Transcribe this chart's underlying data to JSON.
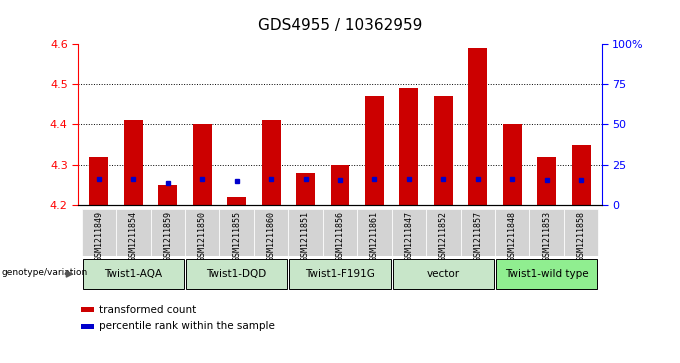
{
  "title": "GDS4955 / 10362959",
  "samples": [
    "GSM1211849",
    "GSM1211854",
    "GSM1211859",
    "GSM1211850",
    "GSM1211855",
    "GSM1211860",
    "GSM1211851",
    "GSM1211856",
    "GSM1211861",
    "GSM1211847",
    "GSM1211852",
    "GSM1211857",
    "GSM1211848",
    "GSM1211853",
    "GSM1211858"
  ],
  "red_values": [
    4.32,
    4.41,
    4.25,
    4.4,
    4.22,
    4.41,
    4.28,
    4.3,
    4.47,
    4.49,
    4.47,
    4.59,
    4.4,
    4.32,
    4.35
  ],
  "blue_values": [
    4.265,
    4.265,
    4.255,
    4.265,
    4.26,
    4.265,
    4.265,
    4.263,
    4.265,
    4.265,
    4.265,
    4.265,
    4.265,
    4.263,
    4.263
  ],
  "y_min": 4.2,
  "y_max": 4.6,
  "y_ticks_left": [
    4.2,
    4.3,
    4.4,
    4.5,
    4.6
  ],
  "y_ticks_right_pct": [
    0,
    25,
    50,
    75,
    100
  ],
  "groups": [
    {
      "label": "Twist1-AQA",
      "start": 0,
      "end": 3
    },
    {
      "label": "Twist1-DQD",
      "start": 3,
      "end": 6
    },
    {
      "label": "Twist1-F191G",
      "start": 6,
      "end": 9
    },
    {
      "label": "vector",
      "start": 9,
      "end": 12
    },
    {
      "label": "Twist1-wild type",
      "start": 12,
      "end": 15
    }
  ],
  "group_colors": [
    "#c8e6c9",
    "#c8e6c9",
    "#c8e6c9",
    "#c8e6c9",
    "#90ee90"
  ],
  "bar_color": "#cc0000",
  "dot_color": "#0000cc",
  "base": 4.2,
  "sample_bg": "#d3d3d3",
  "legend_items": [
    "transformed count",
    "percentile rank within the sample"
  ],
  "legend_colors": [
    "#cc0000",
    "#0000cc"
  ],
  "title_fontsize": 11
}
